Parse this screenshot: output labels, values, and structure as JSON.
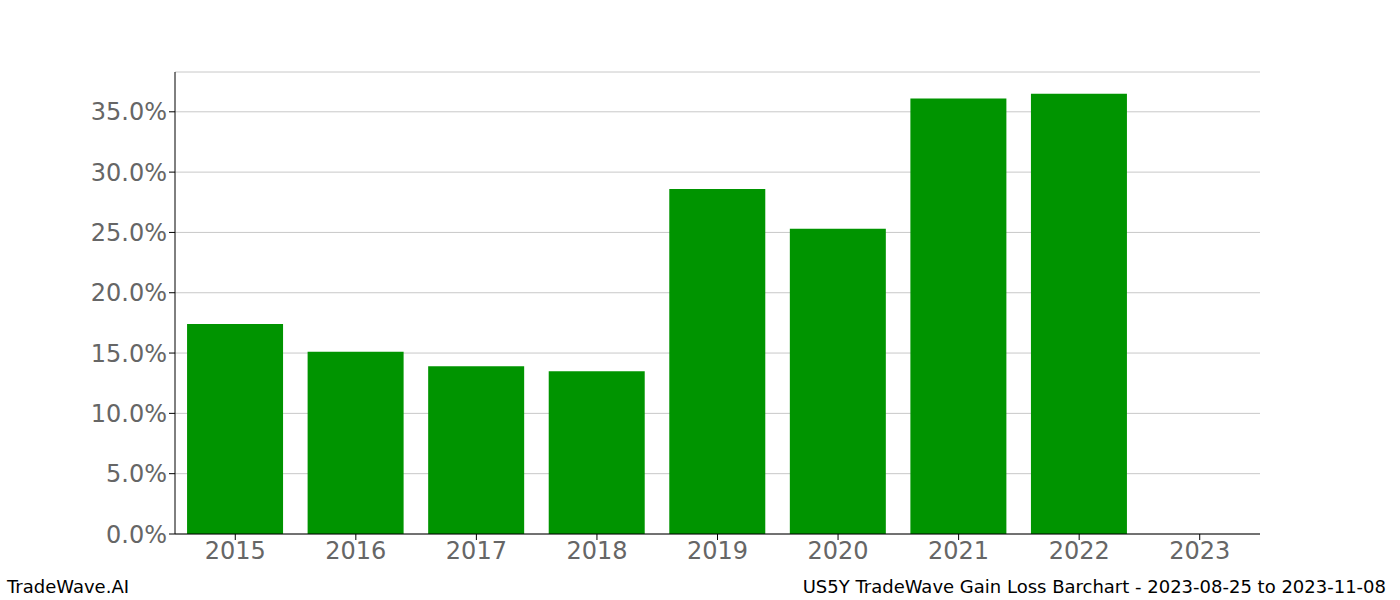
{
  "chart_data": {
    "type": "bar",
    "title": "US5Y TradeWave Gain Loss Barchart - 2023-08-25 to 2023-11-08",
    "annotations": [
      "TradeWave.AI"
    ],
    "categories": [
      "2015",
      "2016",
      "2017",
      "2018",
      "2019",
      "2020",
      "2021",
      "2022",
      "2023"
    ],
    "values": [
      17.4,
      15.1,
      13.9,
      13.5,
      28.6,
      25.3,
      36.1,
      36.5,
      null
    ],
    "color": "#009400",
    "ylim": [
      0,
      38.3
    ],
    "yticks": [
      {
        "value": 0,
        "label": "0.0%"
      },
      {
        "value": 5,
        "label": "5.0%"
      },
      {
        "value": 10,
        "label": "10.0%"
      },
      {
        "value": 15,
        "label": "15.0%"
      },
      {
        "value": 20,
        "label": "20.0%"
      },
      {
        "value": 25,
        "label": "25.0%"
      },
      {
        "value": 30,
        "label": "30.0%"
      },
      {
        "value": 35,
        "label": "35.0%"
      }
    ],
    "grid": true
  }
}
